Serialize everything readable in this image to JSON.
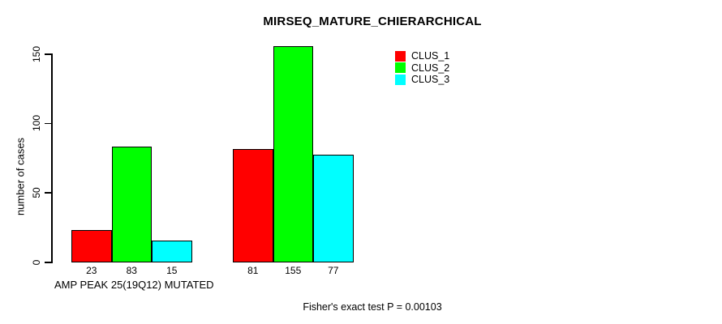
{
  "chart_data": {
    "type": "bar",
    "title": "MIRSEQ_MATURE_CHIERARCHICAL",
    "ylabel": "number of cases",
    "xlabel": "AMP PEAK 25(19Q12) MUTATED",
    "ylim": [
      0,
      150
    ],
    "yticks": [
      0,
      50,
      100,
      150
    ],
    "grid": false,
    "legend_position": "top-right",
    "series": [
      {
        "name": "CLUS_1",
        "color": "#ff0000",
        "values": [
          23,
          81
        ]
      },
      {
        "name": "CLUS_2",
        "color": "#00ff00",
        "values": [
          83,
          155
        ]
      },
      {
        "name": "CLUS_3",
        "color": "#00ffff",
        "values": [
          15,
          77
        ]
      }
    ],
    "bar_value_labels": [
      [
        "23",
        "83",
        "15"
      ],
      [
        "81",
        "155",
        "77"
      ]
    ],
    "annotation": "Fisher's exact test P = 0.00103",
    "colors": {
      "background": "#ffffff",
      "axis": "#000000",
      "text": "#000000",
      "bar_border": "#000000"
    }
  }
}
